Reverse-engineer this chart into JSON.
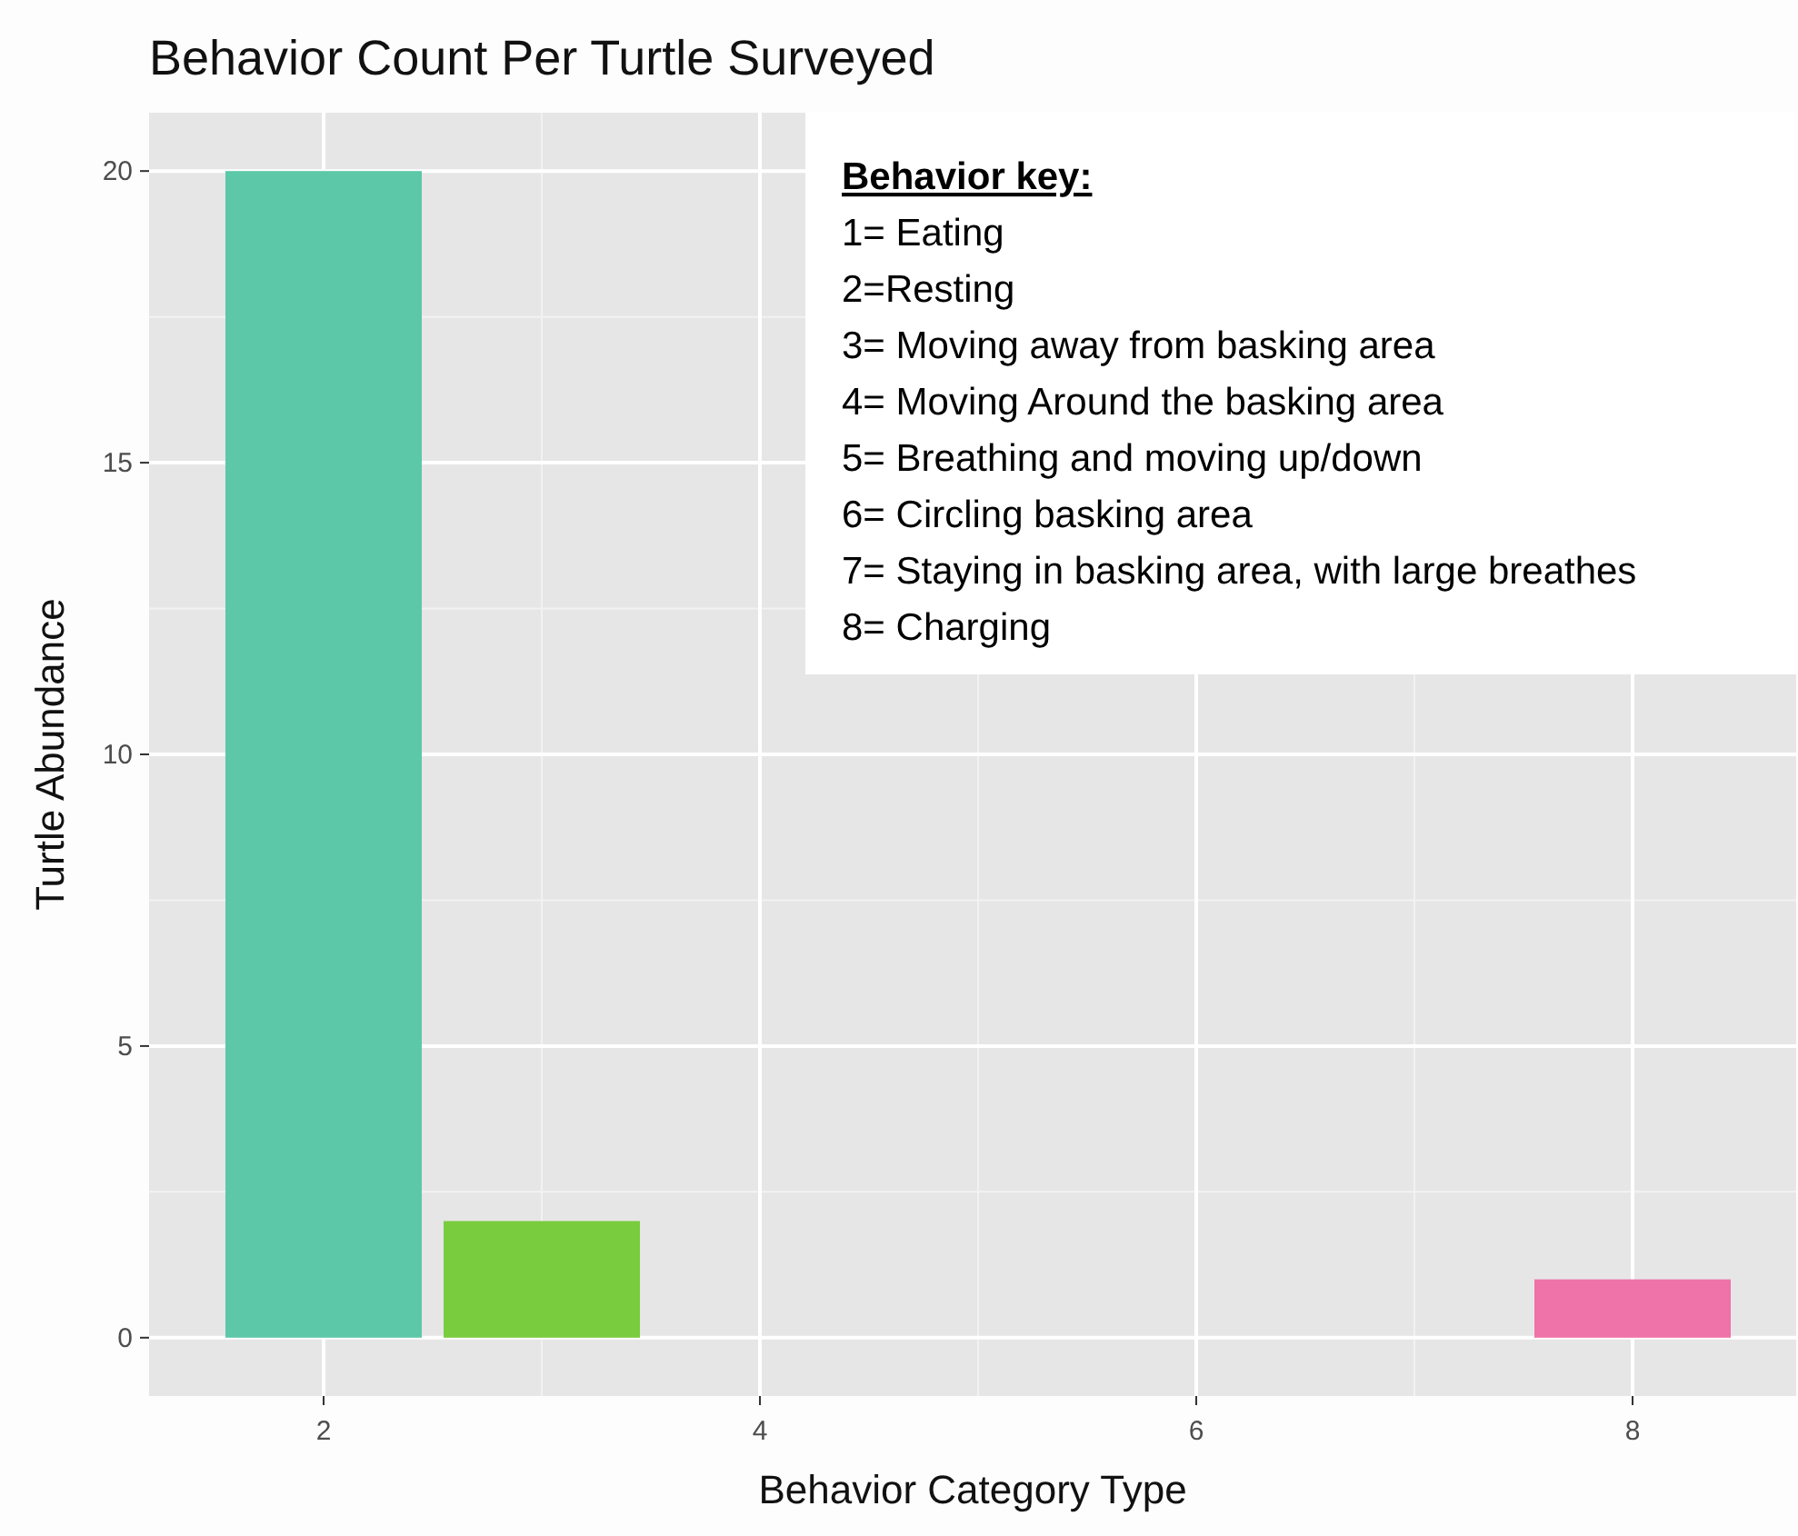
{
  "chart_data": {
    "type": "bar",
    "title": "Behavior Count Per Turtle Surveyed",
    "xlabel": "Behavior Category Type",
    "ylabel": "Turtle Abundance",
    "x": [
      2,
      3,
      8
    ],
    "values": [
      20,
      2,
      1
    ],
    "colors": [
      "#5cc8a7",
      "#7acc3f",
      "#ef72a9"
    ],
    "xlim": [
      1.2,
      8.75
    ],
    "xticks": [
      2,
      4,
      6,
      8
    ],
    "ylim": [
      -1,
      21
    ],
    "yticks": [
      0,
      5,
      10,
      15,
      20
    ],
    "grid": true,
    "annotations": [
      "Behavior key:",
      "1= Eating",
      "2=Resting",
      "3= Moving away from basking area",
      "4= Moving Around the basking area",
      "5= Breathing  and moving up/down",
      "6= Circling basking area",
      "7= Staying in basking area, with large breathes",
      "8= Charging"
    ]
  }
}
